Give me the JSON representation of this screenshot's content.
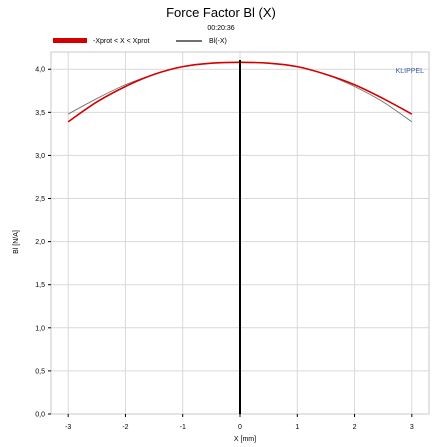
{
  "chart_data": {
    "type": "line",
    "title": "Force Factor Bl (X)",
    "subtitle": "00:20:36",
    "brand": "KLIPPEL",
    "xlabel": "X [mm]",
    "ylabel": "Bl [N/A]",
    "xlim": [
      -3.3,
      3.3
    ],
    "ylim": [
      0,
      4.2
    ],
    "x_ticks": [
      -3,
      -2,
      -1,
      0,
      1,
      2,
      3
    ],
    "x_tick_labels": [
      "-3",
      "-2",
      "-1",
      "0",
      "1",
      "2",
      "3"
    ],
    "y_ticks": [
      0,
      0.5,
      1.0,
      1.5,
      2.0,
      2.5,
      3.0,
      3.5,
      4.0
    ],
    "y_tick_labels": [
      "0,0",
      "0,5",
      "1,0",
      "1,5",
      "2,0",
      "2,5",
      "3,0",
      "3,5",
      "4,0"
    ],
    "grid": true,
    "legend_position": "top-left",
    "vertical_marker_x": 0,
    "colors": {
      "series1": "#d40000",
      "series2": "#707070",
      "marker": "#000000",
      "brand": "#3a5aa8",
      "grid": "#d9d9d9"
    },
    "series": [
      {
        "name": "-Xprot < X < Xprot",
        "x": [
          -3.0,
          -2.5,
          -2.0,
          -1.5,
          -1.0,
          -0.5,
          0.0,
          0.5,
          1.0,
          1.5,
          2.0,
          2.5,
          3.0
        ],
        "y": [
          3.39,
          3.62,
          3.8,
          3.94,
          4.03,
          4.07,
          4.08,
          4.07,
          4.03,
          3.94,
          3.82,
          3.66,
          3.48
        ]
      },
      {
        "name": "Bl(-X)",
        "x": [
          -3.0,
          -2.5,
          -2.0,
          -1.5,
          -1.0,
          -0.5,
          0.0,
          0.5,
          1.0,
          1.5,
          2.0,
          2.5,
          3.0
        ],
        "y": [
          3.48,
          3.66,
          3.82,
          3.94,
          4.03,
          4.07,
          4.08,
          4.07,
          4.03,
          3.94,
          3.8,
          3.62,
          3.39
        ]
      }
    ]
  }
}
